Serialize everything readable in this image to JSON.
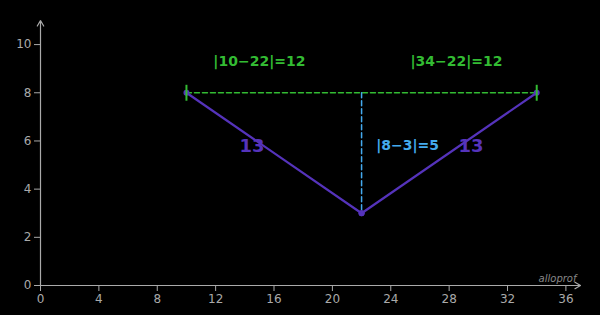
{
  "chart_data": {
    "type": "line",
    "xlim": [
      0,
      37
    ],
    "ylim": [
      0,
      11
    ],
    "xticks": [
      0,
      4,
      8,
      12,
      16,
      20,
      24,
      28,
      32,
      36
    ],
    "yticks": [
      0,
      2,
      4,
      6,
      8,
      10
    ],
    "grid": false,
    "series": [
      {
        "x": [
          10,
          22
        ],
        "values": [
          8,
          3
        ],
        "color": "#5533bb",
        "line_style": "solid",
        "marker": "o"
      },
      {
        "x": [
          34,
          22
        ],
        "values": [
          8,
          3
        ],
        "color": "#5533bb",
        "line_style": "solid",
        "marker": "o"
      },
      {
        "x": [
          10,
          34
        ],
        "values": [
          8,
          8
        ],
        "color": "#33bb33",
        "line_style": "dashed",
        "marker": "|"
      },
      {
        "x": [
          22,
          22
        ],
        "values": [
          8,
          3
        ],
        "color": "#44aaee",
        "line_style": "dashed",
        "marker": "none"
      }
    ],
    "annotations": [
      {
        "text": "13",
        "x": 14.5,
        "y": 5.8,
        "color": "#5533bb"
      },
      {
        "text": "13",
        "x": 29.5,
        "y": 5.8,
        "color": "#5533bb"
      },
      {
        "text": "|10−22|=12",
        "x": 15.0,
        "y": 9.3,
        "color": "#33bb33"
      },
      {
        "text": "|34−22|=12",
        "x": 28.5,
        "y": 9.3,
        "color": "#33bb33"
      },
      {
        "text": "|8−3|=5",
        "x": 23.0,
        "y": 5.8,
        "color": "#44aaee",
        "align": "left"
      },
      {
        "text": "alloprof",
        "position": "bottom-right"
      }
    ]
  }
}
